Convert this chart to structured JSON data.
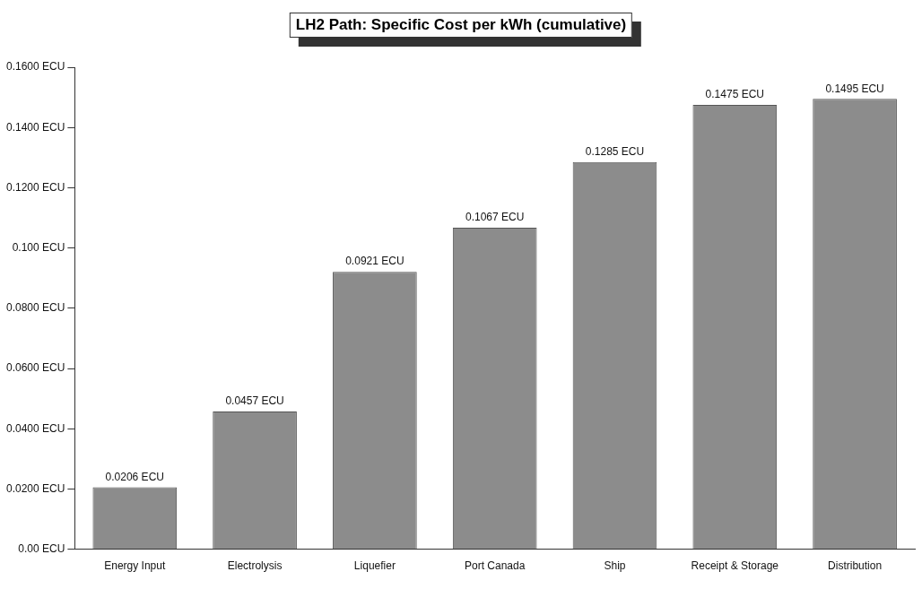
{
  "chart_data": {
    "type": "bar",
    "title": "LH2 Path: Specific Cost per kWh (cumulative)",
    "categories": [
      "Energy Input",
      "Electrolysis",
      "Liquefier",
      "Port Canada",
      "Ship",
      "Receipt & Storage",
      "Distribution"
    ],
    "values": [
      0.0206,
      0.0457,
      0.0921,
      0.1067,
      0.1285,
      0.1475,
      0.1495
    ],
    "value_labels": [
      "0.0206 ECU",
      "0.0457 ECU",
      "0.0921 ECU",
      "0.1067 ECU",
      "0.1285 ECU",
      "0.1475 ECU",
      "0.1495 ECU"
    ],
    "color": "#8c8c8c",
    "ylim": [
      0,
      0.16
    ],
    "yticks": [
      {
        "value": 0,
        "label": "0.00 ECU"
      },
      {
        "value": 0.02,
        "label": "0.0200 ECU"
      },
      {
        "value": 0.04,
        "label": "0.0400 ECU"
      },
      {
        "value": 0.06,
        "label": "0.0600 ECU"
      },
      {
        "value": 0.08,
        "label": "0.0800 ECU"
      },
      {
        "value": 0.1,
        "label": "0.100 ECU"
      },
      {
        "value": 0.12,
        "label": "0.1200 ECU"
      },
      {
        "value": 0.14,
        "label": "0.1400 ECU"
      },
      {
        "value": 0.16,
        "label": "0.1600 ECU"
      }
    ],
    "grid": false,
    "legend": false
  }
}
